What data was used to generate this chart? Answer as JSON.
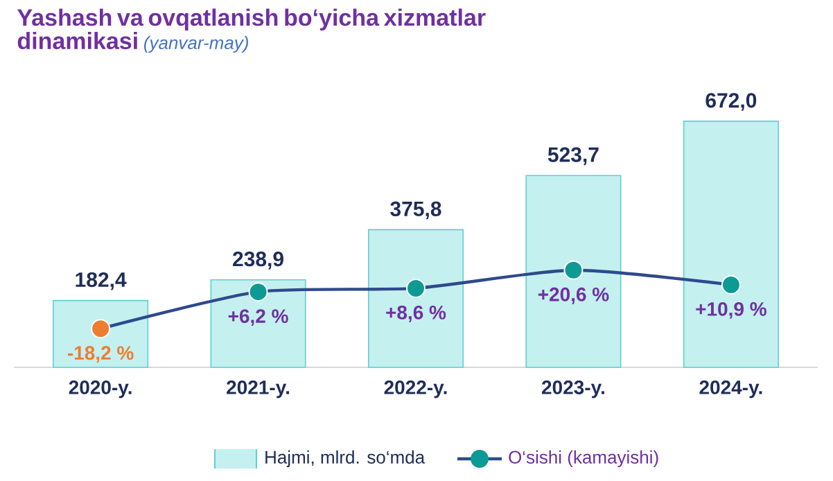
{
  "chart_data": {
    "type": "bar",
    "title": "Yashash va ovqatlanish bo‘yicha xizmatlar dinamikasi",
    "subtitle": "(yanvar-may)",
    "categories": [
      "2020-y.",
      "2021-y.",
      "2022-y.",
      "2023-y.",
      "2024-y."
    ],
    "series": [
      {
        "name": "Hajmi, mlrd. so‘mda",
        "color": "#c4f0f0",
        "values": [
          182.4,
          238.9,
          375.8,
          523.7,
          672.0
        ],
        "value_labels": [
          "182,4",
          "238,9",
          "375,8",
          "523,7",
          "672,0"
        ]
      },
      {
        "name": "O‘sishi (kamayishi)",
        "type": "line",
        "axis": "y2",
        "marker": "circle",
        "color": "#2e4a8c",
        "colors": [
          "#ed7d31",
          "#0e9a94",
          "#0e9a94",
          "#0e9a94",
          "#0e9a94"
        ],
        "values": [
          -18.2,
          6.2,
          8.6,
          20.6,
          10.9
        ],
        "value_labels": [
          "-18,2 %",
          "+6,2 %",
          "+8,6 %",
          "+20,6 %",
          "+10,9 %"
        ]
      }
    ],
    "tick_labels": "x",
    "legend": "bottom"
  }
}
